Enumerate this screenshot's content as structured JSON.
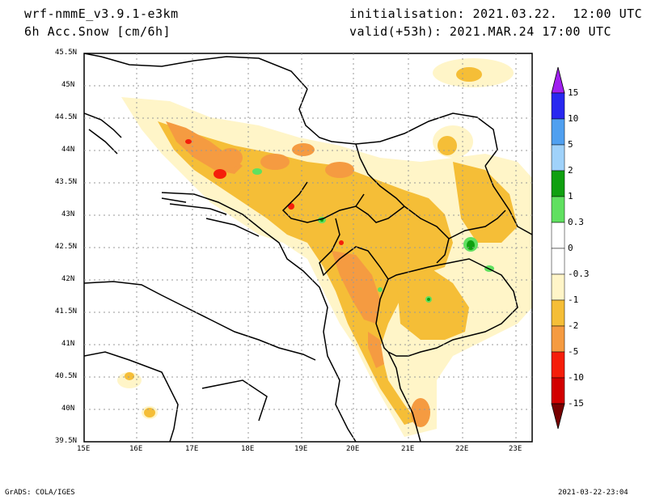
{
  "header": {
    "model": "wrf-nmmE_v3.9.1-e3km",
    "variable": "6h Acc.Snow [cm/6h]",
    "initialisation": "initialisation: 2021.03.22.  12:00 UTC",
    "valid": "valid(+53h): 2021.MAR.24 17:00 UTC"
  },
  "footer": {
    "credit": "GrADS: COLA/IGES",
    "timestamp": "2021-03-22-23:04"
  },
  "axes": {
    "lat_labels": [
      "45.5N",
      "45N",
      "44.5N",
      "44N",
      "43.5N",
      "43N",
      "42.5N",
      "42N",
      "41.5N",
      "41N",
      "40.5N",
      "40N",
      "39.5N"
    ],
    "lon_labels": [
      "15E",
      "16E",
      "17E",
      "18E",
      "19E",
      "20E",
      "21E",
      "22E",
      "23E"
    ]
  },
  "legend": {
    "labels": [
      "15",
      "10",
      "5",
      "2",
      "1",
      "0.3",
      "0",
      "-0.3",
      "-1",
      "-2",
      "-5",
      "-10",
      "-15"
    ],
    "colors": [
      "#a020f0",
      "#2828f0",
      "#50a0f0",
      "#a0d2fa",
      "#10a010",
      "#60e060",
      "#ffffff",
      "#fff5c8",
      "#f5be37",
      "#f59b41",
      "#f51e0a",
      "#d20000",
      "#a00000",
      "#780000"
    ]
  },
  "colors": {
    "light_snow": "#fff5c8",
    "moderate_snow": "#f5be37",
    "heavy_snow": "#f59b41",
    "very_heavy_snow": "#f51e0a",
    "green_high": "#10a010",
    "green_low": "#60e060"
  }
}
